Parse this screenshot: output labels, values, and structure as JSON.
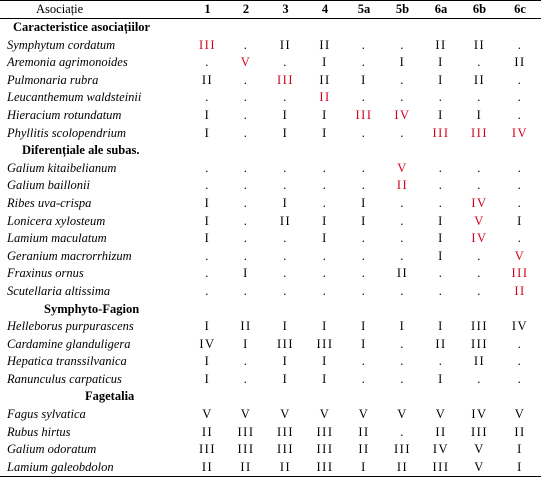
{
  "header": {
    "title": "Asociație",
    "columns": [
      "1",
      "2",
      "3",
      "4",
      "5a",
      "5b",
      "6a",
      "6b",
      "6c"
    ]
  },
  "colors": {
    "text": "#000000",
    "highlight": "#d0021b",
    "background": "#ffffff"
  },
  "groups": [
    {
      "title": "Caracteristice asociațiilor",
      "rows": [
        {
          "species": "Symphytum cordatum",
          "values": [
            "III",
            ".",
            "II",
            "II",
            ".",
            ".",
            "II",
            "II",
            "."
          ],
          "red": [
            0
          ]
        },
        {
          "species": "Aremonia agrimonoides",
          "values": [
            ".",
            "V",
            ".",
            "I",
            ".",
            "I",
            "I",
            ".",
            "II"
          ],
          "red": [
            1
          ]
        },
        {
          "species": "Pulmonaria rubra",
          "values": [
            "II",
            ".",
            "III",
            "II",
            "I",
            ".",
            "I",
            "II",
            "."
          ],
          "red": [
            2
          ]
        },
        {
          "species": "Leucanthemum waldsteinii",
          "values": [
            ".",
            ".",
            ".",
            "II",
            ".",
            ".",
            ".",
            ".",
            "."
          ],
          "red": [
            3
          ]
        },
        {
          "species": "Hieracium rotundatum",
          "values": [
            "I",
            ".",
            "I",
            "I",
            "III",
            "IV",
            "I",
            "I",
            "."
          ],
          "red": [
            4,
            5
          ]
        },
        {
          "species": "Phyllitis scolopendrium",
          "values": [
            "I",
            ".",
            "I",
            "I",
            ".",
            ".",
            "III",
            "III",
            "IV"
          ],
          "red": [
            6,
            7,
            8
          ]
        }
      ]
    },
    {
      "title": "Diferențiale ale subas.",
      "rows": [
        {
          "species": "Galium kitaibelianum",
          "values": [
            ".",
            ".",
            ".",
            ".",
            ".",
            "V",
            ".",
            ".",
            "."
          ],
          "red": [
            5
          ]
        },
        {
          "species": "Galium baillonii",
          "values": [
            ".",
            ".",
            ".",
            ".",
            ".",
            "II",
            ".",
            ".",
            "."
          ],
          "red": [
            5
          ]
        },
        {
          "species": "Ribes uva-crispa",
          "values": [
            "I",
            ".",
            "I",
            ".",
            "I",
            ".",
            ".",
            "IV",
            "."
          ],
          "red": [
            7
          ]
        },
        {
          "species": "Lonicera xylosteum",
          "values": [
            "I",
            ".",
            "II",
            "I",
            "I",
            ".",
            "I",
            "V",
            "I"
          ],
          "red": [
            7
          ]
        },
        {
          "species": "Lamium maculatum",
          "values": [
            "I",
            ".",
            ".",
            "I",
            ".",
            ".",
            "I",
            "IV",
            "."
          ],
          "red": [
            7
          ]
        },
        {
          "species": "Geranium macrorrhizum",
          "values": [
            ".",
            ".",
            ".",
            ".",
            ".",
            ".",
            "I",
            ".",
            "V"
          ],
          "red": [
            8
          ]
        },
        {
          "species": "Fraxinus ornus",
          "values": [
            ".",
            "I",
            ".",
            ".",
            ".",
            "II",
            ".",
            ".",
            "III"
          ],
          "red": [
            8
          ]
        },
        {
          "species": "Scutellaria altissima",
          "values": [
            ".",
            ".",
            ".",
            ".",
            ".",
            ".",
            ".",
            ".",
            "II"
          ],
          "red": [
            8
          ]
        }
      ]
    },
    {
      "title": "Symphyto-Fagion",
      "rows": [
        {
          "species": "Helleborus purpurascens",
          "values": [
            "I",
            "II",
            "I",
            "I",
            "I",
            "I",
            "I",
            "III",
            "IV"
          ],
          "red": []
        },
        {
          "species": "Cardamine glanduligera",
          "values": [
            "IV",
            "I",
            "III",
            "III",
            "I",
            ".",
            "II",
            "III",
            "."
          ],
          "red": []
        },
        {
          "species": "Hepatica transsilvanica",
          "values": [
            "I",
            ".",
            "I",
            "I",
            ".",
            ".",
            ".",
            "II",
            "."
          ],
          "red": []
        },
        {
          "species": "Ranunculus carpaticus",
          "values": [
            "I",
            ".",
            "I",
            "I",
            ".",
            ".",
            "I",
            ".",
            "."
          ],
          "red": []
        }
      ]
    },
    {
      "title": "Fagetalia",
      "rows": [
        {
          "species": "Fagus sylvatica",
          "values": [
            "V",
            "V",
            "V",
            "V",
            "V",
            "V",
            "V",
            "IV",
            "V"
          ],
          "red": []
        },
        {
          "species": "Rubus hirtus",
          "values": [
            "II",
            "III",
            "III",
            "III",
            "II",
            ".",
            "II",
            "III",
            "II"
          ],
          "red": []
        },
        {
          "species": "Galium odoratum",
          "values": [
            "III",
            "III",
            "III",
            "III",
            "II",
            "III",
            "IV",
            "V",
            "I"
          ],
          "red": []
        },
        {
          "species": "Lamium galeobdolon",
          "values": [
            "II",
            "II",
            "II",
            "III",
            "I",
            "II",
            "III",
            "V",
            "I"
          ],
          "red": []
        }
      ]
    }
  ]
}
